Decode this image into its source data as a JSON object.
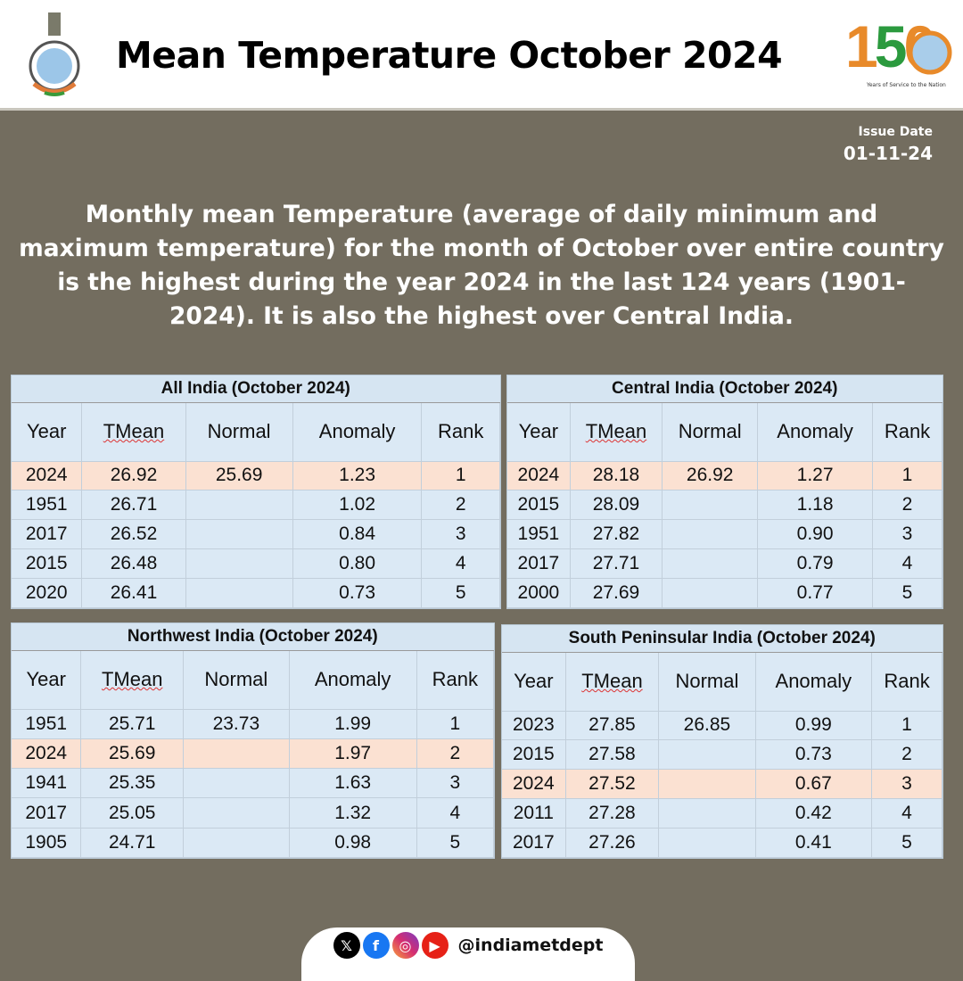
{
  "header": {
    "title": "Mean Temperature October 2024",
    "logo_150": "150",
    "logo_caption": "Years of Service to the Nation"
  },
  "issue": {
    "label": "Issue Date",
    "date": "01-11-24"
  },
  "summary": "Monthly mean Temperature (average of daily minimum and maximum temperature) for the month of October over entire country is the highest during the year 2024 in the last 124 years (1901-2024). It is also the highest over Central India.",
  "colors": {
    "background": "#736d5f",
    "table": "#dbe9f5",
    "highlight": "#fbe1d2"
  },
  "tables": [
    {
      "title": "All India (October 2024)",
      "columns": [
        "Year",
        "TMean",
        "Normal",
        "Anomaly",
        "Rank"
      ],
      "highlight_row": 0,
      "rows": [
        [
          "2024",
          "26.92",
          "25.69",
          "1.23",
          "1"
        ],
        [
          "1951",
          "26.71",
          "",
          "1.02",
          "2"
        ],
        [
          "2017",
          "26.52",
          "",
          "0.84",
          "3"
        ],
        [
          "2015",
          "26.48",
          "",
          "0.80",
          "4"
        ],
        [
          "2020",
          "26.41",
          "",
          "0.73",
          "5"
        ]
      ]
    },
    {
      "title": "Central India (October 2024)",
      "columns": [
        "Year",
        "TMean",
        "Normal",
        "Anomaly",
        "Rank"
      ],
      "highlight_row": 0,
      "rows": [
        [
          "2024",
          "28.18",
          "26.92",
          "1.27",
          "1"
        ],
        [
          "2015",
          "28.09",
          "",
          "1.18",
          "2"
        ],
        [
          "1951",
          "27.82",
          "",
          "0.90",
          "3"
        ],
        [
          "2017",
          "27.71",
          "",
          "0.79",
          "4"
        ],
        [
          "2000",
          "27.69",
          "",
          "0.77",
          "5"
        ]
      ]
    },
    {
      "title": "Northwest India (October 2024)",
      "columns": [
        "Year",
        "TMean",
        "Normal",
        "Anomaly",
        "Rank"
      ],
      "highlight_row": 1,
      "rows": [
        [
          "1951",
          "25.71",
          "23.73",
          "1.99",
          "1"
        ],
        [
          "2024",
          "25.69",
          "",
          "1.97",
          "2"
        ],
        [
          "1941",
          "25.35",
          "",
          "1.63",
          "3"
        ],
        [
          "2017",
          "25.05",
          "",
          "1.32",
          "4"
        ],
        [
          "1905",
          "24.71",
          "",
          "0.98",
          "5"
        ]
      ]
    },
    {
      "title": "South Peninsular India (October 2024)",
      "columns": [
        "Year",
        "TMean",
        "Normal",
        "Anomaly",
        "Rank"
      ],
      "highlight_row": 2,
      "rows": [
        [
          "2023",
          "27.85",
          "26.85",
          "0.99",
          "1"
        ],
        [
          "2015",
          "27.58",
          "",
          "0.73",
          "2"
        ],
        [
          "2024",
          "27.52",
          "",
          "0.67",
          "3"
        ],
        [
          "2011",
          "27.28",
          "",
          "0.42",
          "4"
        ],
        [
          "2017",
          "27.26",
          "",
          "0.41",
          "5"
        ]
      ]
    }
  ],
  "footer": {
    "handle": "@indiametdept",
    "icons": [
      "x-icon",
      "facebook-icon",
      "instagram-icon",
      "youtube-icon"
    ]
  }
}
